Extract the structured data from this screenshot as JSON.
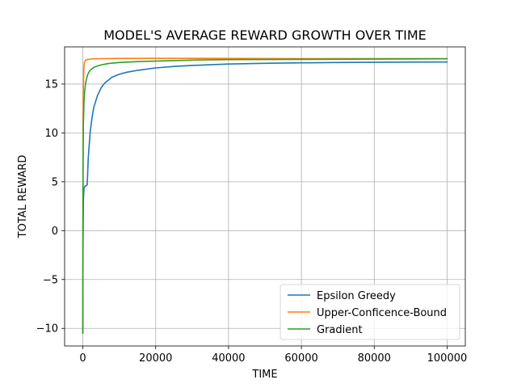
{
  "chart_data": {
    "type": "line",
    "title": "MODEL'S AVERAGE REWARD GROWTH OVER TIME",
    "xlabel": "TIME",
    "ylabel": "TOTAL REWARD",
    "xlim": [
      -5000,
      105000
    ],
    "ylim": [
      -11.8,
      18.8
    ],
    "x_ticks": [
      0,
      20000,
      40000,
      60000,
      80000,
      100000
    ],
    "y_ticks": [
      -10,
      -5,
      0,
      5,
      10,
      15
    ],
    "x_tick_labels": [
      "0",
      "20000",
      "40000",
      "60000",
      "80000",
      "100000"
    ],
    "y_tick_labels": [
      "−10",
      "−5",
      "0",
      "5",
      "10",
      "15"
    ],
    "grid": true,
    "legend_position": "lower-right",
    "series": [
      {
        "name": "Epsilon Greedy",
        "color": "#1f77b4",
        "x": [
          0,
          50,
          150,
          300,
          500,
          800,
          1000,
          1200,
          1500,
          2000,
          2500,
          3000,
          4000,
          5000,
          6000,
          7000,
          8000,
          10000,
          12000,
          15000,
          20000,
          25000,
          30000,
          40000,
          50000,
          60000,
          70000,
          80000,
          90000,
          100000
        ],
        "y": [
          -10.4,
          -2.0,
          3.0,
          4.3,
          4.5,
          4.6,
          4.6,
          4.7,
          7.5,
          10.0,
          11.5,
          12.6,
          13.8,
          14.6,
          15.1,
          15.4,
          15.7,
          16.0,
          16.2,
          16.4,
          16.65,
          16.8,
          16.9,
          17.05,
          17.12,
          17.17,
          17.2,
          17.22,
          17.24,
          17.25
        ]
      },
      {
        "name": "Upper-Conficence-Bound",
        "color": "#ff7f0e",
        "x": [
          0,
          30,
          80,
          150,
          300,
          500,
          800,
          1200,
          2000,
          3000,
          5000,
          10000,
          20000,
          40000,
          60000,
          80000,
          100000
        ],
        "y": [
          -10.5,
          3.0,
          11.0,
          15.0,
          16.8,
          17.3,
          17.45,
          17.5,
          17.55,
          17.58,
          17.6,
          17.62,
          17.63,
          17.62,
          17.6,
          17.6,
          17.6
        ]
      },
      {
        "name": "Gradient",
        "color": "#2ca02c",
        "x": [
          0,
          30,
          80,
          150,
          300,
          500,
          800,
          1200,
          1500,
          2000,
          3000,
          4000,
          5000,
          7000,
          10000,
          15000,
          20000,
          30000,
          40000,
          60000,
          80000,
          100000
        ],
        "y": [
          -10.5,
          2.0,
          8.0,
          11.0,
          13.0,
          14.2,
          15.2,
          15.8,
          16.1,
          16.4,
          16.7,
          16.85,
          16.95,
          17.1,
          17.2,
          17.3,
          17.35,
          17.45,
          17.5,
          17.52,
          17.55,
          17.58
        ]
      }
    ]
  }
}
